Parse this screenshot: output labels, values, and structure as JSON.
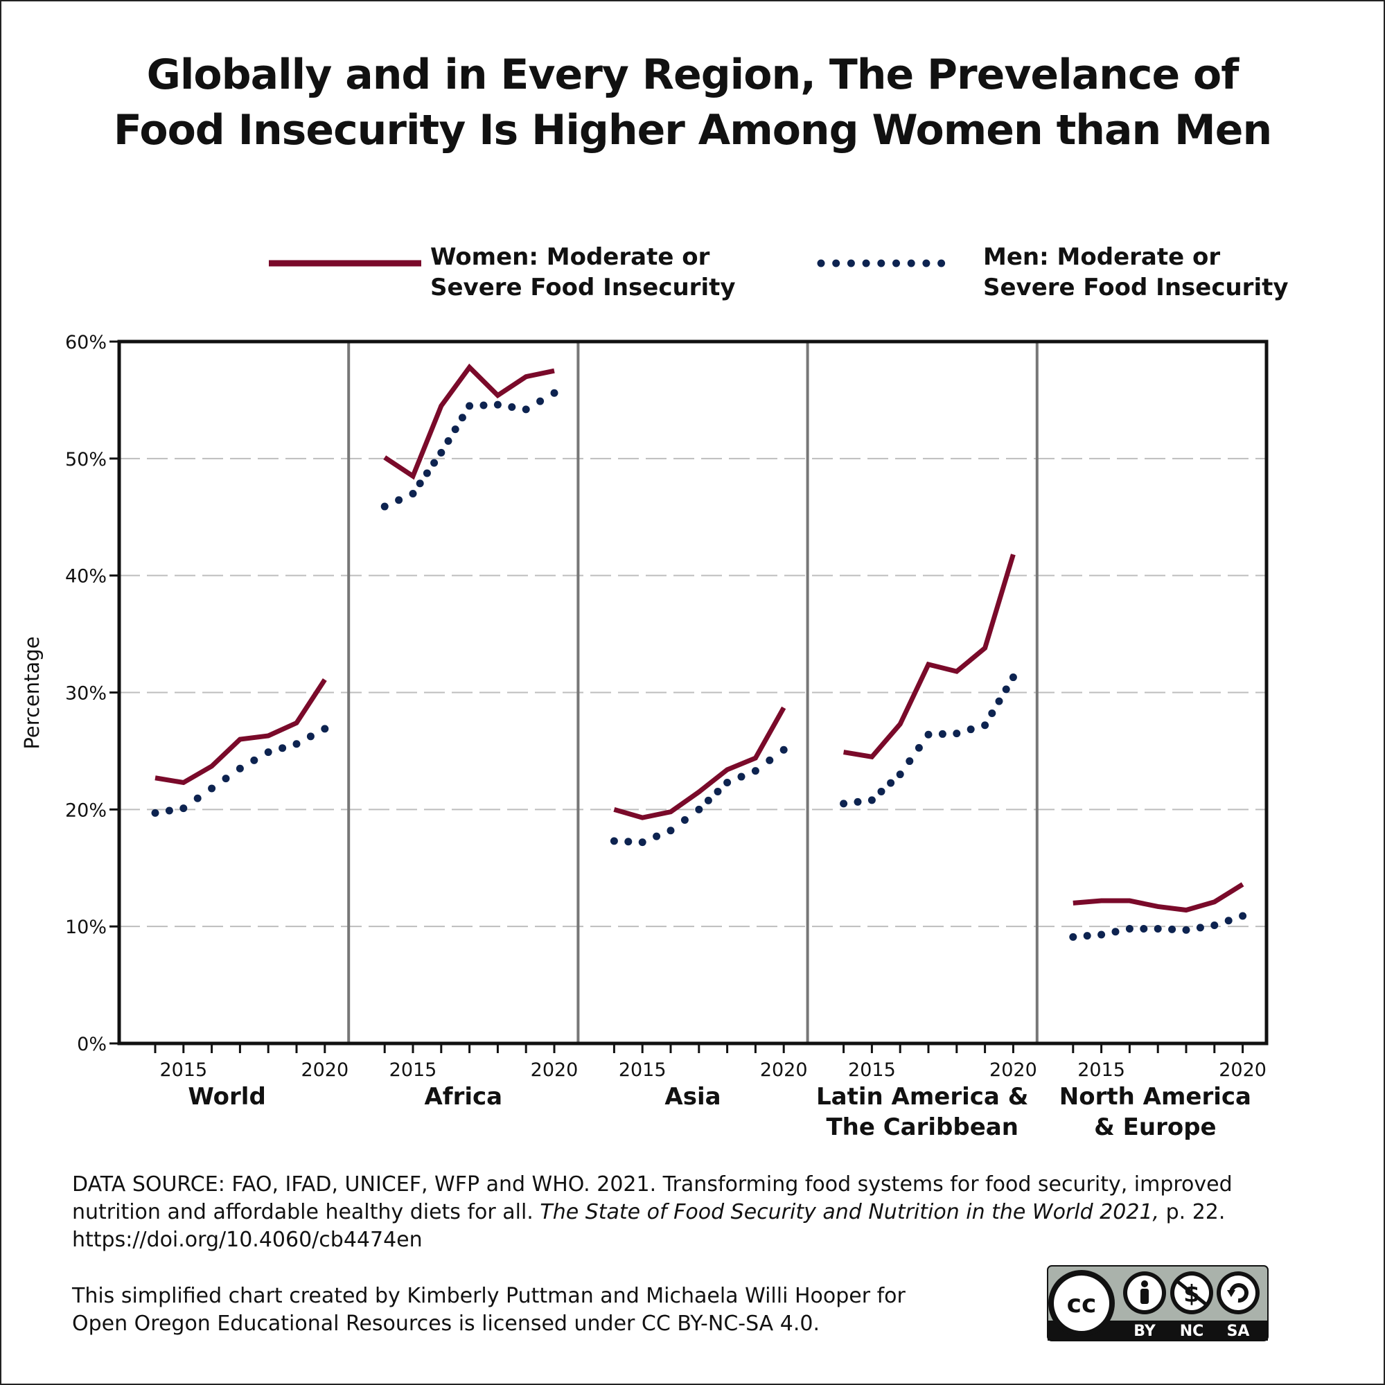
{
  "title": {
    "line1": "Globally and in Every Region, The Prevelance of",
    "line2": "Food Insecurity Is Higher Among Women than Men"
  },
  "legend": {
    "women": {
      "line1": "Women: Moderate or",
      "line2": "Severe Food Insecurity",
      "color": "#7a0a2a"
    },
    "men": {
      "line1": "Men: Moderate or",
      "line2": "Severe Food Insecurity",
      "color": "#0d2350"
    }
  },
  "chart_data": {
    "type": "line",
    "ylabel": "Percentage",
    "ylim": [
      0,
      60
    ],
    "yticks": [
      "0%",
      "10%",
      "20%",
      "30%",
      "40%",
      "50%",
      "60%"
    ],
    "x": [
      2014,
      2015,
      2016,
      2017,
      2018,
      2019,
      2020
    ],
    "xtick_labels": [
      "2015",
      "2020"
    ],
    "grid": "horizontal dashed",
    "panels": [
      {
        "name": "World",
        "label_line1": "World",
        "label_line2": "",
        "women": [
          22.7,
          22.3,
          23.7,
          26.0,
          26.3,
          27.4,
          31.1
        ],
        "men": [
          19.7,
          20.1,
          21.8,
          23.5,
          24.9,
          25.6,
          26.9
        ]
      },
      {
        "name": "Africa",
        "label_line1": "Africa",
        "label_line2": "",
        "women": [
          50.1,
          48.5,
          54.5,
          57.8,
          55.4,
          57.0,
          57.5
        ],
        "men": [
          45.9,
          47.0,
          50.5,
          54.5,
          54.6,
          54.2,
          55.6
        ]
      },
      {
        "name": "Asia",
        "label_line1": "Asia",
        "label_line2": "",
        "women": [
          20.0,
          19.3,
          19.8,
          21.5,
          23.4,
          24.4,
          28.7
        ],
        "men": [
          17.3,
          17.2,
          18.2,
          20.0,
          22.3,
          23.3,
          25.1
        ]
      },
      {
        "name": "Latin America & The Caribbean",
        "label_line1": "Latin America &",
        "label_line2": "The Caribbean",
        "women": [
          24.9,
          24.5,
          27.3,
          32.4,
          31.8,
          33.8,
          41.8
        ],
        "men": [
          20.5,
          20.8,
          23.0,
          26.4,
          26.5,
          27.2,
          31.3
        ]
      },
      {
        "name": "North America & Europe",
        "label_line1": "North America",
        "label_line2": "& Europe",
        "women": [
          12.0,
          12.2,
          12.2,
          11.7,
          11.4,
          12.1,
          13.6
        ],
        "men": [
          9.1,
          9.3,
          9.8,
          9.8,
          9.7,
          10.1,
          10.9
        ]
      }
    ]
  },
  "footer": {
    "source_line1": "DATA SOURCE: FAO, IFAD, UNICEF, WFP and WHO. 2021. Transforming food systems for food security, improved",
    "source_line2a": "nutrition and affordable healthy diets for all. ",
    "source_line2_italic": "The State of Food Security and Nutrition in the World 2021,",
    "source_line2b": " p. 22.",
    "source_line3": "https://doi.org/10.4060/cb4474en",
    "credit_line1": "This simplified chart created by Kimberly Puttman and Michaela Willi Hooper for",
    "credit_line2": "Open Oregon Educational Resources is licensed under CC BY-NC-SA 4.0."
  },
  "license_badge": {
    "cc": "cc",
    "by": "BY",
    "nc": "NC",
    "sa": "SA",
    "icons": [
      "cc-icon",
      "attribution-icon",
      "noncommercial-icon",
      "sharealike-icon"
    ]
  }
}
